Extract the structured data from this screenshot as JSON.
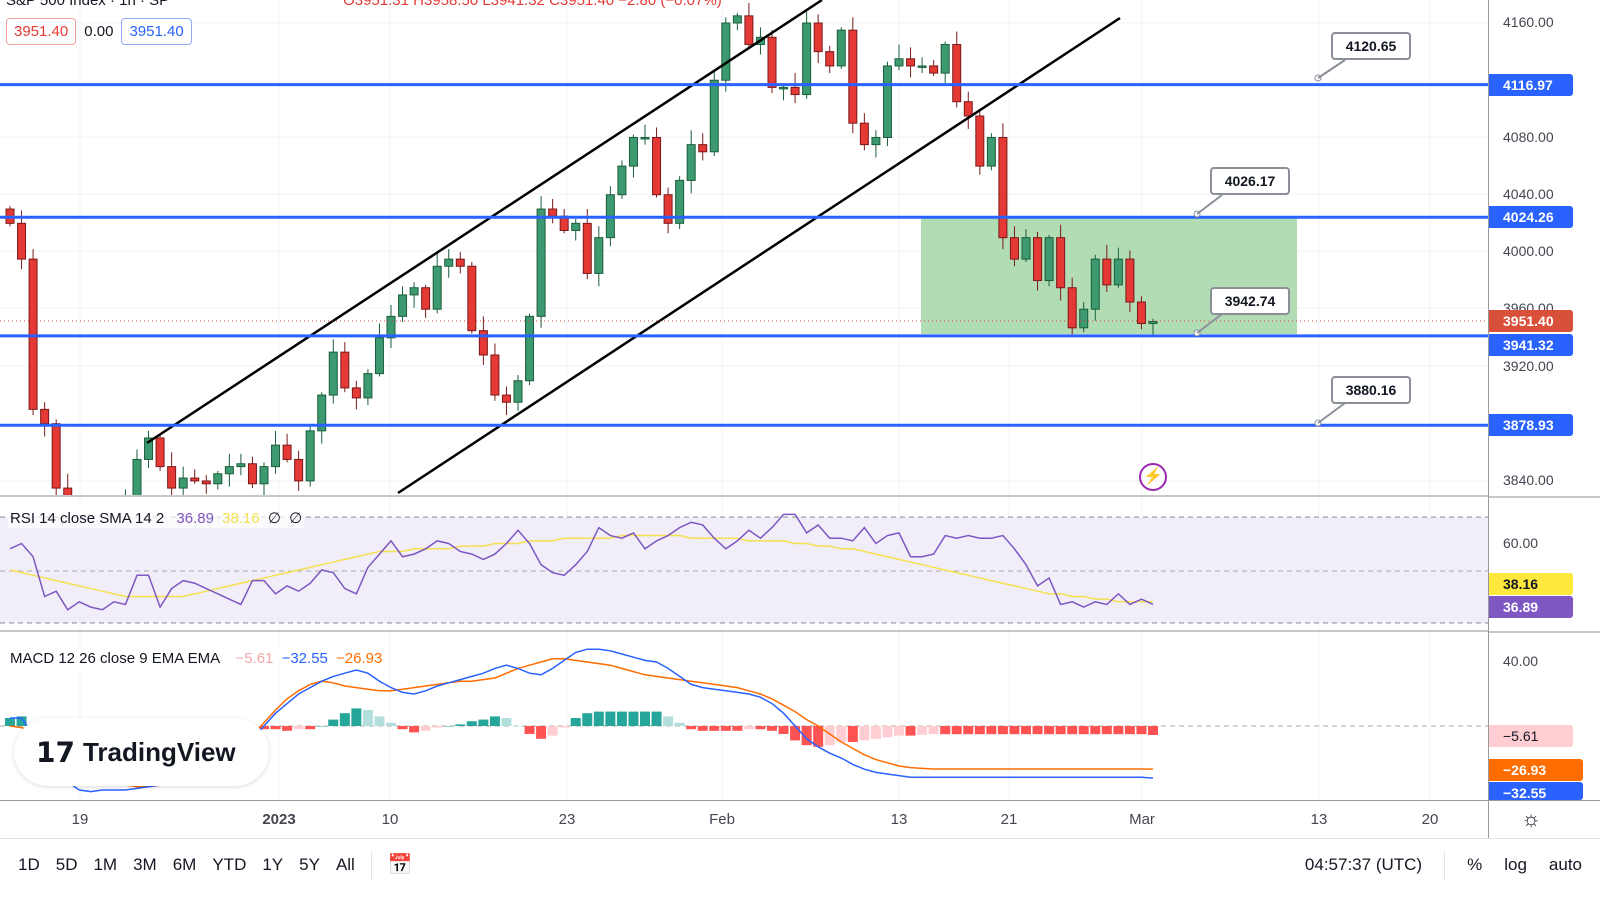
{
  "header": {
    "symbol": "S&P 500 Index · 1h · SP",
    "ohlc": "O3951.31 H3958.50 L3941.32 C3951.40 −2.80 (−0.07%)",
    "sell_price": "3951.40",
    "spread": "0.00",
    "buy_price": "3951.40"
  },
  "price_axis": {
    "ticks": [
      "4160.00",
      "4080.00",
      "4040.00",
      "4000.00",
      "3960.00",
      "3920.00",
      "3840.00"
    ],
    "tags": {
      "l1": "4116.97",
      "l2": "4024.26",
      "current": "3951.40",
      "l3": "3941.32",
      "l4": "3878.93"
    }
  },
  "callouts": [
    "4120.65",
    "4026.17",
    "3942.74",
    "3880.16"
  ],
  "rsi": {
    "label": "RSI 14 close SMA 14 2",
    "rsi_value": "36.89",
    "sma_value": "38.16",
    "extra1": "∅",
    "extra2": "∅",
    "tick": "60.00"
  },
  "macd": {
    "label": "MACD 12 26 close 9 EMA EMA",
    "hist_value": "−5.61",
    "macd_value": "−32.55",
    "signal_value": "−26.93",
    "tick": "40.00"
  },
  "time_axis": [
    "19",
    "2023",
    "10",
    "23",
    "Feb",
    "13",
    "21",
    "Mar",
    "13",
    "20"
  ],
  "toolbar": {
    "ranges": [
      "1D",
      "5D",
      "1M",
      "3M",
      "6M",
      "YTD",
      "1Y",
      "5Y",
      "All"
    ],
    "time": "04:57:37 (UTC)",
    "percent": "%",
    "log": "log",
    "auto": "auto"
  },
  "logo_text": "TradingView",
  "colors": {
    "up": "#3d9970",
    "down": "#e53935",
    "level": "#2962ff",
    "rsi": "#7e57c2",
    "rsi_sma": "#f5e050",
    "macd": "#2962ff",
    "signal": "#ff6d00",
    "zone": "#a5d6a7"
  },
  "chart_data": {
    "type": "candlestick",
    "ylim": [
      3830,
      4175
    ],
    "levels": [
      4116.97,
      4024.26,
      3941.32,
      3878.93
    ],
    "close": [
      4020,
      3995,
      3890,
      3880,
      3835,
      3820,
      3815,
      3818,
      3822,
      3820,
      3825,
      3855,
      3870,
      3850,
      3835,
      3842,
      3840,
      3838,
      3845,
      3850,
      3852,
      3838,
      3850,
      3865,
      3855,
      3840,
      3875,
      3900,
      3930,
      3905,
      3898,
      3915,
      3940,
      3955,
      3970,
      3975,
      3960,
      3990,
      3995,
      3990,
      3945,
      3928,
      3900,
      3895,
      3910,
      3955,
      4030,
      4025,
      4015,
      4020,
      3985,
      4010,
      4040,
      4060,
      4080,
      4080,
      4040,
      4020,
      4050,
      4075,
      4070,
      4120,
      4160,
      4165,
      4145,
      4150,
      4115,
      4115,
      4110,
      4160,
      4140,
      4130,
      4155,
      4090,
      4075,
      4080,
      4130,
      4135,
      4130,
      4130,
      4125,
      4145,
      4105,
      4095,
      4060,
      4080,
      4010,
      3995,
      4010,
      3980,
      4010,
      3975,
      3947,
      3960,
      3995,
      3977,
      3995,
      3965,
      3950,
      3951.4
    ],
    "rsi": [
      58,
      60,
      55,
      40,
      42,
      35,
      38,
      36,
      35,
      38,
      37,
      48,
      48,
      36,
      43,
      46,
      45,
      43,
      41,
      39,
      37,
      46,
      46,
      41,
      44,
      42,
      45,
      50,
      49,
      43,
      41,
      51,
      56,
      61,
      55,
      56,
      58,
      61,
      60,
      57,
      56,
      54,
      56,
      60,
      65,
      60,
      52,
      49,
      48,
      52,
      57,
      66,
      63,
      62,
      64,
      58,
      61,
      63,
      66,
      68,
      67,
      62,
      58,
      61,
      65,
      62,
      66,
      71,
      71,
      64,
      67,
      62,
      62,
      61,
      66,
      60,
      63,
      64,
      55,
      55,
      56,
      63,
      62,
      63,
      62,
      62,
      63,
      58,
      52,
      44,
      47,
      37,
      38,
      36,
      38,
      37,
      41,
      37,
      39,
      37
    ],
    "rsi_sma": [
      50,
      49,
      48,
      47,
      46,
      45,
      44,
      43,
      42,
      41,
      40,
      40,
      40,
      40,
      40,
      40,
      41,
      42,
      43,
      44,
      45,
      46,
      47,
      48,
      49,
      50,
      51,
      52,
      53,
      54,
      55,
      56,
      57,
      57,
      57,
      58,
      58,
      58,
      58,
      59,
      59,
      59,
      60,
      60,
      60,
      61,
      61,
      61,
      62,
      62,
      62,
      62,
      62,
      63,
      63,
      63,
      63,
      63,
      63,
      62,
      62,
      62,
      62,
      62,
      61,
      61,
      61,
      61,
      60,
      60,
      59,
      59,
      58,
      58,
      57,
      56,
      55,
      54,
      53,
      52,
      51,
      50,
      49,
      48,
      47,
      46,
      45,
      44,
      43,
      42,
      41,
      41,
      40,
      40,
      39,
      39,
      38,
      38,
      38,
      38
    ],
    "macd": [
      5,
      5,
      -5,
      -15,
      -25,
      -35,
      -40,
      -41,
      -40,
      -40,
      -40,
      -39,
      -38,
      -37,
      -35,
      -33,
      -30,
      -27,
      -24,
      -20,
      -15,
      -8,
      0,
      8,
      14,
      20,
      24,
      28,
      31,
      33,
      35,
      33,
      28,
      24,
      21,
      20,
      22,
      25,
      27,
      29,
      31,
      33,
      36,
      38,
      36,
      33,
      32,
      36,
      41,
      46,
      48,
      48,
      47,
      45,
      43,
      41,
      40,
      36,
      31,
      26,
      24,
      23,
      22,
      21,
      20,
      18,
      14,
      8,
      0,
      -8,
      -13,
      -17,
      -20,
      -24,
      -27,
      -29,
      -30,
      -31,
      -32,
      -32,
      -32,
      -32,
      -32,
      -32,
      -32,
      -32,
      -32,
      -32,
      -32,
      -32,
      -32,
      -32,
      -32,
      -32,
      -32,
      -32,
      -32,
      -32,
      -32,
      -32.55
    ],
    "signal": [
      0,
      -1,
      -3,
      -7,
      -12,
      -18,
      -23,
      -28,
      -32,
      -35,
      -37,
      -38,
      -38,
      -37,
      -36,
      -34,
      -31,
      -28,
      -24,
      -19,
      -13,
      -6,
      2,
      10,
      17,
      22,
      26,
      28,
      27,
      25,
      24,
      23,
      22,
      22,
      23,
      24,
      25,
      26,
      27,
      28,
      28,
      29,
      30,
      33,
      36,
      38,
      40,
      42,
      42,
      41,
      40,
      39,
      38,
      36,
      34,
      32,
      31,
      30,
      29,
      28,
      27,
      26,
      25,
      24,
      22,
      20,
      17,
      13,
      9,
      4,
      0,
      -5,
      -10,
      -14,
      -18,
      -21,
      -23,
      -25,
      -26,
      -26.5,
      -26.9,
      -26.9,
      -26.9,
      -26.9,
      -26.9,
      -26.9,
      -26.9,
      -26.9,
      -26.9,
      -26.9,
      -26.9,
      -26.9,
      -26.9,
      -26.9,
      -26.9,
      -26.9,
      -26.9,
      -26.9,
      -26.9,
      -26.93
    ]
  }
}
